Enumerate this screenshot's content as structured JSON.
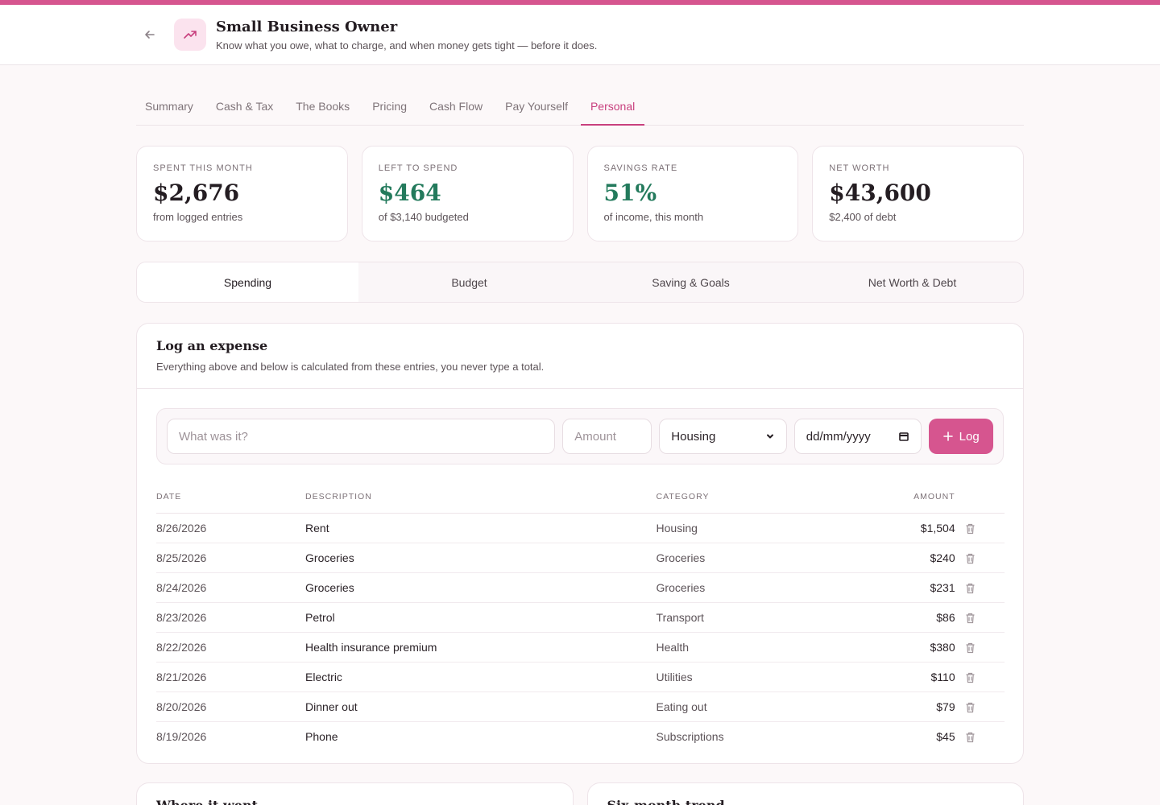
{
  "header": {
    "title": "Small Business Owner",
    "subtitle": "Know what you owe, what to charge, and when money gets tight — before it does.",
    "back_icon": "arrow-left-icon",
    "logo_icon": "trending-up-icon",
    "accent": "#d6558f"
  },
  "tabs": [
    {
      "label": "Summary"
    },
    {
      "label": "Cash & Tax"
    },
    {
      "label": "The Books"
    },
    {
      "label": "Pricing"
    },
    {
      "label": "Cash Flow"
    },
    {
      "label": "Pay Yourself"
    },
    {
      "label": "Personal",
      "active": true
    }
  ],
  "stats": [
    {
      "label": "SPENT THIS MONTH",
      "value": "$2,676",
      "note": "from logged entries"
    },
    {
      "label": "LEFT TO SPEND",
      "value": "$464",
      "note": "of $3,140 budgeted",
      "color": "#237a5c"
    },
    {
      "label": "SAVINGS RATE",
      "value": "51%",
      "note": "of income, this month",
      "color": "#237a5c"
    },
    {
      "label": "NET WORTH",
      "value": "$43,600",
      "note": "$2,400 of debt"
    }
  ],
  "subtabs": [
    {
      "label": "Spending",
      "active": true
    },
    {
      "label": "Budget"
    },
    {
      "label": "Saving & Goals"
    },
    {
      "label": "Net Worth & Debt"
    }
  ],
  "log": {
    "title": "Log an expense",
    "subtitle": "Everything above and below is calculated from these entries, you never type a total.",
    "description_placeholder": "What was it?",
    "amount_placeholder": "Amount",
    "category_value": "Housing",
    "date_placeholder": "dd/mm/yyyy",
    "button_label": "Log",
    "button_icon": "plus-icon"
  },
  "table": {
    "headers": {
      "date": "DATE",
      "description": "DESCRIPTION",
      "category": "CATEGORY",
      "amount": "AMOUNT"
    },
    "rows": [
      {
        "date": "8/26/2026",
        "description": "Rent",
        "category": "Housing",
        "amount": "$1,504"
      },
      {
        "date": "8/25/2026",
        "description": "Groceries",
        "category": "Groceries",
        "amount": "$240"
      },
      {
        "date": "8/24/2026",
        "description": "Groceries",
        "category": "Groceries",
        "amount": "$231"
      },
      {
        "date": "8/23/2026",
        "description": "Petrol",
        "category": "Transport",
        "amount": "$86"
      },
      {
        "date": "8/22/2026",
        "description": "Health insurance premium",
        "category": "Health",
        "amount": "$380"
      },
      {
        "date": "8/21/2026",
        "description": "Electric",
        "category": "Utilities",
        "amount": "$110"
      },
      {
        "date": "8/20/2026",
        "description": "Dinner out",
        "category": "Eating out",
        "amount": "$79"
      },
      {
        "date": "8/19/2026",
        "description": "Phone",
        "category": "Subscriptions",
        "amount": "$45"
      }
    ],
    "delete_icon": "trash-icon"
  },
  "bottom_cards": [
    {
      "title": "Where it went"
    },
    {
      "title": "Six-month trend"
    }
  ]
}
